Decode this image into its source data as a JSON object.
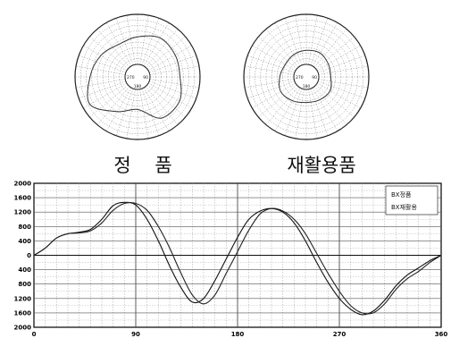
{
  "chart_data": [
    {
      "type": "polar",
      "caption": "정    품",
      "angle_labels": [
        "270",
        "90",
        "180"
      ],
      "series": [
        {
          "name": "",
          "theta_deg": [
            0,
            30,
            60,
            90,
            120,
            150,
            180,
            210,
            240,
            270,
            300,
            330
          ],
          "r": [
            0.55,
            0.65,
            0.62,
            0.6,
            0.72,
            0.7,
            0.4,
            0.55,
            0.85,
            0.7,
            0.6,
            0.5
          ]
        }
      ]
    },
    {
      "type": "polar",
      "caption": "재활용품",
      "angle_labels": [
        "270",
        "90",
        "180"
      ],
      "series": [
        {
          "name": "",
          "theta_deg": [
            0,
            30,
            60,
            90,
            120,
            150,
            180,
            210,
            240,
            270,
            300,
            330
          ],
          "r": [
            0.28,
            0.3,
            0.26,
            0.24,
            0.3,
            0.28,
            0.26,
            0.3,
            0.34,
            0.28,
            0.24,
            0.26
          ]
        }
      ]
    },
    {
      "type": "line",
      "title": "",
      "xlabel": "",
      "ylabel": "",
      "xlim": [
        0,
        360
      ],
      "ylim": [
        -2000,
        2000
      ],
      "x_ticks": [
        0,
        90,
        180,
        270,
        360
      ],
      "y_ticks": [
        2000,
        1600,
        1200,
        800,
        400,
        0,
        -400,
        -800,
        -1200,
        -1600,
        -2000
      ],
      "y_tick_labels": [
        "2000",
        "1600",
        "1200",
        "800",
        "400",
        "0",
        "400",
        "800",
        "1200",
        "1600",
        "2000"
      ],
      "grid": true,
      "legend": "top-right",
      "series": [
        {
          "name": "BX정품",
          "x": [
            0,
            10,
            20,
            30,
            40,
            50,
            60,
            70,
            80,
            90,
            100,
            110,
            120,
            130,
            140,
            150,
            160,
            170,
            180,
            190,
            200,
            210,
            220,
            230,
            240,
            250,
            260,
            270,
            280,
            290,
            300,
            310,
            320,
            330,
            340,
            350,
            360
          ],
          "y": [
            0,
            200,
            480,
            600,
            640,
            720,
            1000,
            1380,
            1470,
            1400,
            1000,
            400,
            -300,
            -900,
            -1300,
            -1200,
            -700,
            -100,
            500,
            1000,
            1230,
            1300,
            1200,
            900,
            400,
            -200,
            -750,
            -1200,
            -1500,
            -1650,
            -1550,
            -1250,
            -850,
            -550,
            -350,
            -150,
            0
          ]
        },
        {
          "name": "BX재활용",
          "x": [
            0,
            10,
            20,
            30,
            40,
            50,
            60,
            70,
            80,
            90,
            100,
            110,
            120,
            130,
            140,
            150,
            160,
            170,
            180,
            190,
            200,
            210,
            220,
            230,
            240,
            250,
            260,
            270,
            280,
            290,
            300,
            310,
            320,
            330,
            340,
            350,
            360
          ],
          "y": [
            0,
            200,
            480,
            600,
            620,
            680,
            900,
            1250,
            1440,
            1440,
            1250,
            800,
            200,
            -500,
            -1100,
            -1350,
            -1100,
            -500,
            100,
            700,
            1150,
            1300,
            1230,
            1000,
            600,
            50,
            -500,
            -1000,
            -1400,
            -1600,
            -1600,
            -1350,
            -950,
            -650,
            -450,
            -200,
            0
          ]
        }
      ]
    }
  ]
}
